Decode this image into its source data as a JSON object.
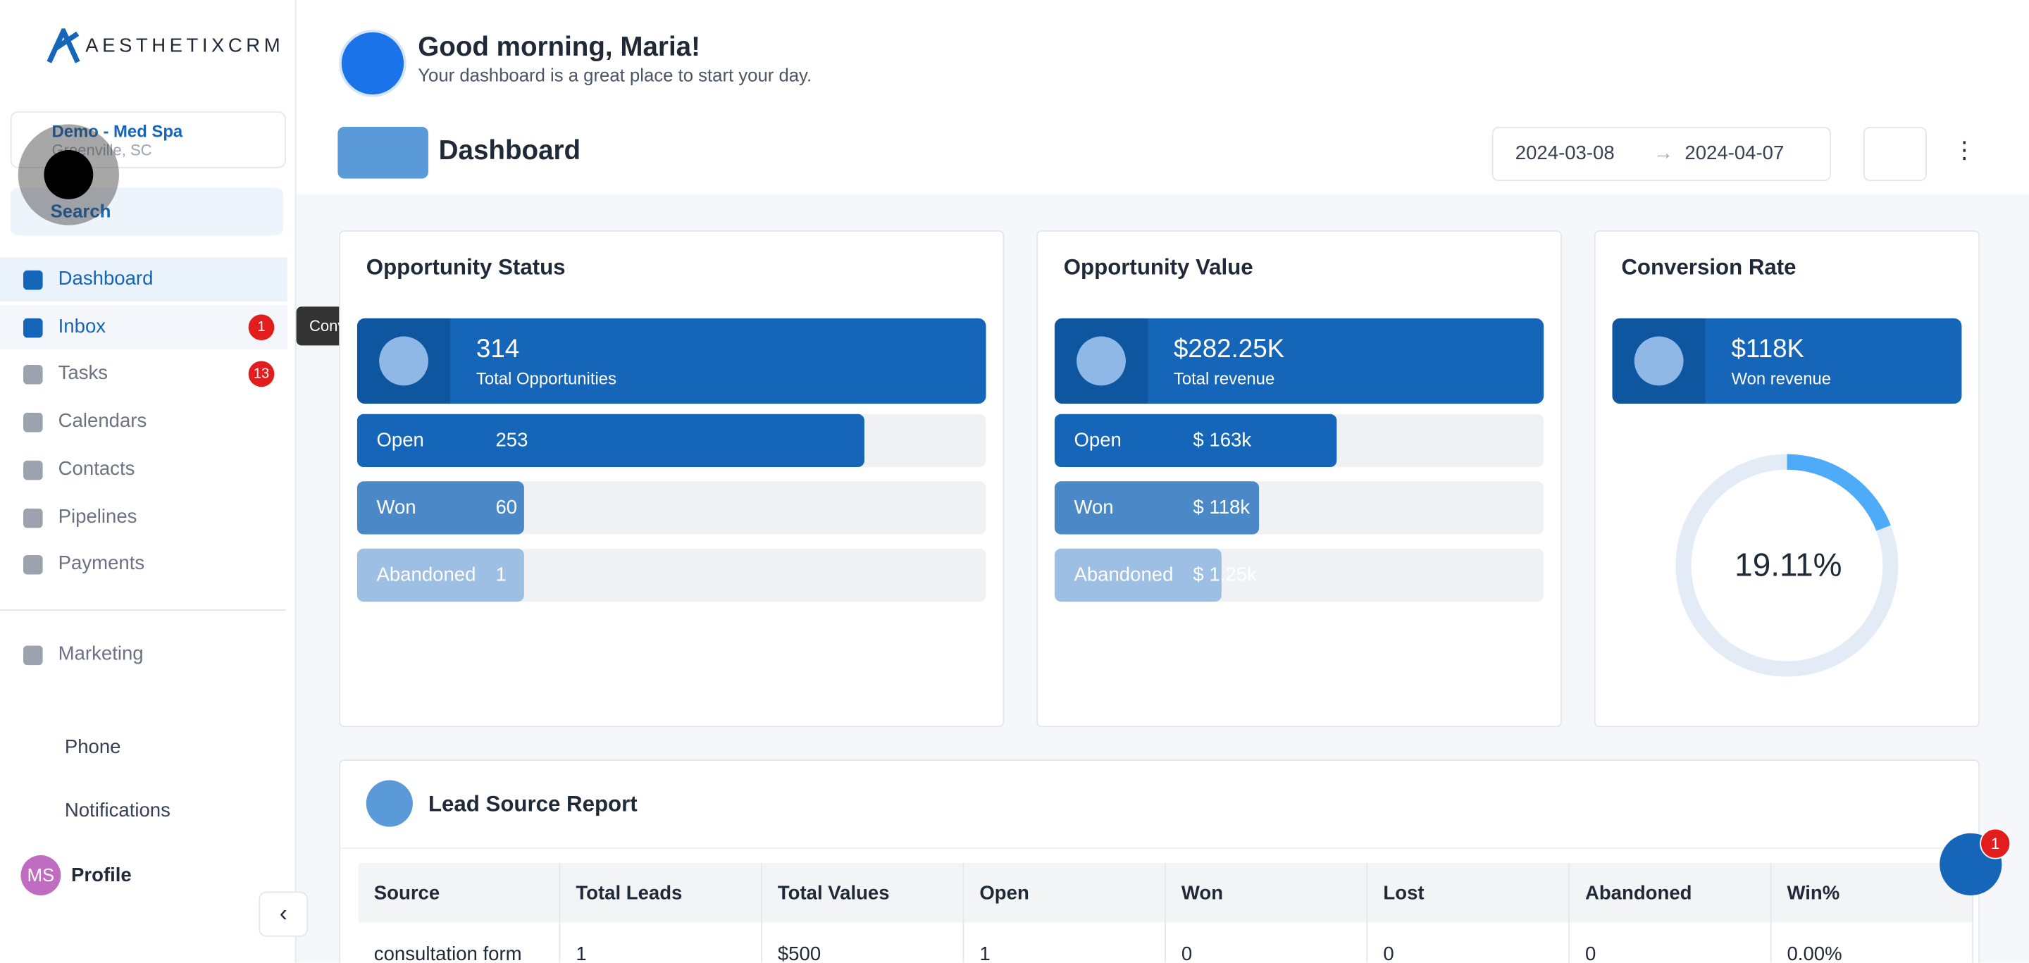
{
  "brand": "AESTHETIXCRM",
  "location": {
    "name": "Demo - Med Spa",
    "city": "Greenville, SC"
  },
  "search": "Search",
  "nav": [
    {
      "label": "Dashboard"
    },
    {
      "label": "Inbox",
      "badge": 1
    },
    {
      "label": "Tasks",
      "badge": 13
    },
    {
      "label": "Calendars"
    },
    {
      "label": "Contacts"
    },
    {
      "label": "Pipelines"
    },
    {
      "label": "Payments"
    }
  ],
  "marketing": "Marketing",
  "bottom_nav": [
    "Phone",
    "Notifications",
    "Profile"
  ],
  "profile_initials": "MS",
  "tooltip": "Conversations",
  "greeting": {
    "title": "Good morning, Maria!",
    "subtitle": "Your dashboard is a great place to start your day."
  },
  "page_title": "Dashboard",
  "date_range": {
    "start": "2024-03-08",
    "end": "2024-04-07"
  },
  "cards": [
    {
      "title": "Opportunity Status",
      "total": 314,
      "total_label": "Total Opportunities",
      "rows": [
        {
          "label": "Open",
          "value": 253
        },
        {
          "label": "Won",
          "value": 60
        },
        {
          "label": "Abandoned",
          "value": 1
        }
      ]
    },
    {
      "title": "Opportunity Value",
      "total": {
        "value": 282250,
        "label": "$282.25K"
      },
      "total_label": "Total revenue",
      "rows": [
        {
          "label": "Open",
          "value": {
            "value": 163000,
            "label": "$ 163k"
          }
        },
        {
          "label": "Won",
          "value": {
            "value": 118000,
            "label": "$ 118k"
          }
        },
        {
          "label": "Abandoned",
          "value": {
            "value": 1250,
            "label": "$ 1.25k"
          }
        }
      ]
    },
    {
      "title": "Conversion Rate",
      "total": "$118K",
      "total_label": "Won revenue",
      "rate": {
        "value": 19.11,
        "label": "19.11%"
      }
    }
  ],
  "lead_report": {
    "title": "Lead Source Report",
    "columns": [
      "Source",
      "Total Leads",
      "Total Values",
      "Open",
      "Won",
      "Lost",
      "Abandoned",
      "Win%"
    ],
    "rows": [
      [
        "consultation form",
        "1",
        "$500",
        "1",
        "0",
        "0",
        "0",
        "0.00%"
      ]
    ]
  },
  "chat_badge": 1
}
